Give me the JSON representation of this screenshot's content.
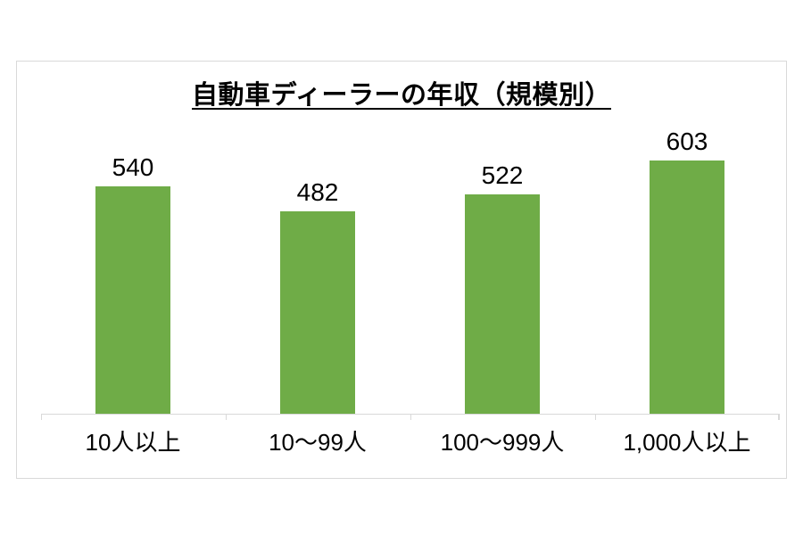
{
  "chart_data": {
    "type": "bar",
    "title": "自動車ディーラーの年収（規模別）",
    "categories": [
      "10人以上",
      "10〜99人",
      "100〜999人",
      "1,000人以上"
    ],
    "values": [
      540,
      482,
      522,
      603
    ],
    "xlabel": "",
    "ylabel": "",
    "ylim": [
      0,
      700
    ],
    "grid": false,
    "legend": false,
    "data_labels_shown": true,
    "bar_color": "#6FAC47",
    "axis_color": "#D9D9D9",
    "text_color": "#000000",
    "frame_border_color": "#D9D9D9"
  }
}
